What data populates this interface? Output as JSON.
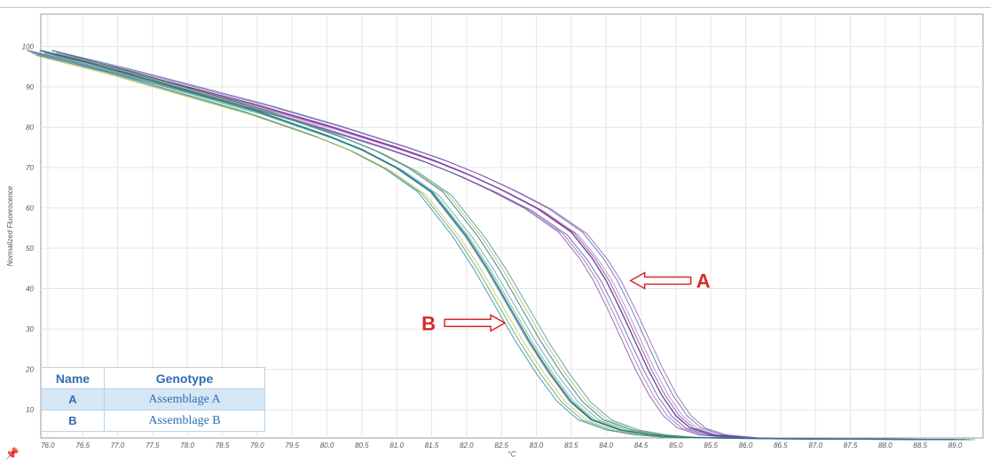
{
  "chart_data": {
    "type": "line",
    "title": "",
    "xlabel": "°C",
    "ylabel": "Normalized Fluorescence",
    "xlim": [
      75.9,
      89.4
    ],
    "ylim": [
      3,
      108
    ],
    "grid": true,
    "x_ticks": [
      "76.0",
      "76.5",
      "77.0",
      "77.5",
      "78.0",
      "78.5",
      "79.0",
      "79.5",
      "80.0",
      "80.5",
      "81.0",
      "81.5",
      "82.0",
      "82.5",
      "83.0",
      "83.5",
      "84.0",
      "84.5",
      "85.0",
      "85.5",
      "86.0",
      "86.5",
      "87.0",
      "87.5",
      "88.0",
      "88.5",
      "89.0"
    ],
    "y_ticks": [
      "10",
      "20",
      "30",
      "40",
      "50",
      "60",
      "70",
      "80",
      "90",
      "100"
    ],
    "series": [
      {
        "group": "A",
        "color": "#7a3a9a",
        "x": [
          75.9,
          77.0,
          78.0,
          79.0,
          80.0,
          81.0,
          81.5,
          82.0,
          82.5,
          83.0,
          83.5,
          83.8,
          84.0,
          84.2,
          84.4,
          84.6,
          84.8,
          85.0,
          85.2,
          85.5,
          86.0,
          86.5,
          89.0
        ],
        "y": [
          99.0,
          94.5,
          90.0,
          85.5,
          80.5,
          75.0,
          72.0,
          68.5,
          64.5,
          60.0,
          54.0,
          47.5,
          42.0,
          35.0,
          27.5,
          20.0,
          13.5,
          8.5,
          5.5,
          3.8,
          3.0,
          2.8,
          2.6
        ]
      },
      {
        "group": "B",
        "color": "#1f7a8c",
        "x": [
          75.9,
          77.0,
          78.0,
          79.0,
          80.0,
          80.5,
          81.0,
          81.5,
          82.0,
          82.3,
          82.6,
          82.9,
          83.2,
          83.5,
          83.8,
          84.2,
          84.6,
          85.0,
          86.0,
          89.0
        ],
        "y": [
          99.0,
          94.0,
          89.0,
          84.0,
          78.0,
          74.5,
          70.0,
          64.0,
          53.0,
          45.0,
          36.0,
          27.0,
          19.0,
          12.0,
          7.5,
          5.0,
          3.8,
          3.2,
          2.9,
          2.6
        ]
      }
    ],
    "annotations": [
      {
        "text": "A",
        "x": 85.1,
        "y": 43.0
      },
      {
        "text": "B",
        "x": 82.4,
        "y": 32.5
      }
    ],
    "legend": {
      "placement": "bottom-left",
      "headers": [
        "Name",
        "Genotype"
      ],
      "rows": [
        {
          "name": "A",
          "genotype": "Assemblage A"
        },
        {
          "name": "B",
          "genotype": "Assemblage B"
        }
      ]
    }
  },
  "colors": {
    "grid": "#e6e6e6",
    "frame": "#9a9a9a",
    "arrow_stroke": "#d62a2a",
    "label_red": "#d62a2a",
    "table_border": "#b9d3ea",
    "table_text": "#2f6fb1",
    "table_highlight": "#d5e6f5"
  },
  "icons": {
    "toolbar": "pin-icon"
  }
}
